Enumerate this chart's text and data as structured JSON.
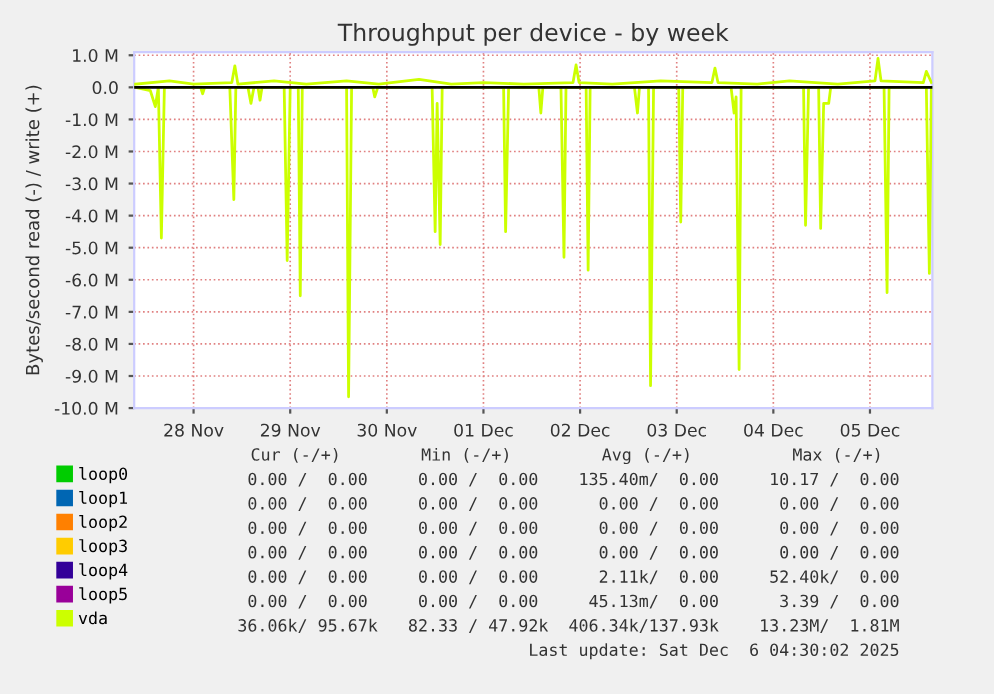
{
  "chart_data": {
    "type": "line",
    "title": "Throughput per device - by week",
    "ylabel": "Bytes/second read (-) / write (+)",
    "xlim": [
      "2025-11-27T21:15",
      "2025-12-06T03:30"
    ],
    "xticks": [
      {
        "value": "2025-11-28T12:00",
        "label": "28 Nov"
      },
      {
        "value": "2025-11-29T12:00",
        "label": "29 Nov"
      },
      {
        "value": "2025-11-30T12:00",
        "label": "30 Nov"
      },
      {
        "value": "2025-12-01T12:00",
        "label": "01 Dec"
      },
      {
        "value": "2025-12-02T12:00",
        "label": "02 Dec"
      },
      {
        "value": "2025-12-03T12:00",
        "label": "03 Dec"
      },
      {
        "value": "2025-12-04T12:00",
        "label": "04 Dec"
      },
      {
        "value": "2025-12-05T12:00",
        "label": "05 Dec"
      }
    ],
    "ylim": [
      -10,
      1.1
    ],
    "yticks": [
      {
        "value": 1,
        "label": "1.0 M"
      },
      {
        "value": 0,
        "label": "0.0"
      },
      {
        "value": -1,
        "label": "-1.0 M"
      },
      {
        "value": -2,
        "label": "-2.0 M"
      },
      {
        "value": -3,
        "label": "-3.0 M"
      },
      {
        "value": -4,
        "label": "-4.0 M"
      },
      {
        "value": -5,
        "label": "-5.0 M"
      },
      {
        "value": -6,
        "label": "-6.0 M"
      },
      {
        "value": -7,
        "label": "-7.0 M"
      },
      {
        "value": -8,
        "label": "-8.0 M"
      },
      {
        "value": -9,
        "label": "-9.0 M"
      },
      {
        "value": -10,
        "label": "-10.0 M"
      }
    ],
    "grid": true,
    "legend": "bottom",
    "marker": "none",
    "line_style": "solid",
    "ref_lines": [
      {
        "axis": "y",
        "value": 0,
        "color": "#000000"
      }
    ],
    "series": [
      {
        "name": "loop0",
        "color": "#00cc00"
      },
      {
        "name": "loop1",
        "color": "#0066b3"
      },
      {
        "name": "loop2",
        "color": "#ff8000"
      },
      {
        "name": "loop3",
        "color": "#ffcc00"
      },
      {
        "name": "loop4",
        "color": "#330099"
      },
      {
        "name": "loop5",
        "color": "#990099"
      },
      {
        "name": "vda",
        "color": "#ccff00",
        "x": [
          "2025-11-27T21:30",
          "2025-11-28T06:00",
          "2025-11-28T12:00",
          "2025-11-28T21:30",
          "2025-11-28T22:15",
          "2025-11-28T23:00",
          "2025-11-29T08:00",
          "2025-11-29T16:00",
          "2025-11-30T02:00",
          "2025-11-30T10:00",
          "2025-11-30T20:00",
          "2025-12-01T04:00",
          "2025-12-01T12:00",
          "2025-12-01T22:00",
          "2025-12-02T10:15",
          "2025-12-02T11:00",
          "2025-12-02T11:45",
          "2025-12-02T20:00",
          "2025-12-03T08:00",
          "2025-12-03T20:45",
          "2025-12-03T21:30",
          "2025-12-03T22:15",
          "2025-12-04T08:00",
          "2025-12-04T16:00",
          "2025-12-05T04:00",
          "2025-12-05T13:15",
          "2025-12-05T14:00",
          "2025-12-05T14:45",
          "2025-12-06T01:15",
          "2025-12-06T02:00",
          "2025-12-06T03:15"
        ],
        "values": [
          0.1,
          0.2,
          0.1,
          0.15,
          0.67,
          0.1,
          0.2,
          0.1,
          0.2,
          0.1,
          0.25,
          0.1,
          0.15,
          0.1,
          0.15,
          0.7,
          0.15,
          0.1,
          0.2,
          0.15,
          0.6,
          0.15,
          0.1,
          0.2,
          0.1,
          0.2,
          0.9,
          0.2,
          0.15,
          0.5,
          0.15
        ]
      },
      {
        "color": "#ccff00",
        "x": [
          "2025-11-27T21:30",
          "2025-11-28T01:15",
          "2025-11-28T02:30",
          "2025-11-28T03:15",
          "2025-11-28T04:00",
          "2025-11-28T04:45",
          "2025-11-28T13:45",
          "2025-11-28T14:15",
          "2025-11-28T14:45",
          "2025-11-28T21:00",
          "2025-11-28T22:00",
          "2025-11-28T22:30",
          "2025-11-29T01:30",
          "2025-11-29T02:15",
          "2025-11-29T03:00",
          "2025-11-29T04:00",
          "2025-11-29T04:30",
          "2025-11-29T05:00",
          "2025-11-29T10:30",
          "2025-11-29T11:15",
          "2025-11-29T12:00",
          "2025-11-29T14:00",
          "2025-11-29T14:30",
          "2025-11-29T15:00",
          "2025-11-30T02:00",
          "2025-11-30T02:30",
          "2025-11-30T03:15",
          "2025-11-30T08:30",
          "2025-11-30T09:00",
          "2025-11-30T09:45",
          "2025-11-30T23:15",
          "2025-12-01T00:00",
          "2025-12-01T00:30",
          "2025-12-01T01:15",
          "2025-12-01T01:45",
          "2025-12-01T17:00",
          "2025-12-01T17:30",
          "2025-12-01T18:15",
          "2025-12-02T01:45",
          "2025-12-02T02:15",
          "2025-12-02T02:45",
          "2025-12-02T07:15",
          "2025-12-02T08:00",
          "2025-12-02T08:30",
          "2025-12-02T13:30",
          "2025-12-02T14:00",
          "2025-12-02T14:30",
          "2025-12-03T01:30",
          "2025-12-03T02:15",
          "2025-12-03T02:45",
          "2025-12-03T05:00",
          "2025-12-03T05:30",
          "2025-12-03T06:15",
          "2025-12-03T12:30",
          "2025-12-03T13:00",
          "2025-12-03T13:30",
          "2025-12-04T01:30",
          "2025-12-04T02:15",
          "2025-12-04T02:45",
          "2025-12-04T03:30",
          "2025-12-04T04:00",
          "2025-12-04T19:30",
          "2025-12-04T20:00",
          "2025-12-04T20:45",
          "2025-12-04T23:15",
          "2025-12-04T23:45",
          "2025-12-05T00:30",
          "2025-12-05T01:45",
          "2025-12-05T02:15",
          "2025-12-05T15:30",
          "2025-12-05T16:15",
          "2025-12-05T16:45",
          "2025-12-06T02:00",
          "2025-12-06T02:45",
          "2025-12-06T03:15"
        ],
        "values": [
          0,
          -0.1,
          -0.6,
          0,
          -4.7,
          0,
          0,
          -0.2,
          0,
          0,
          -3.5,
          0,
          0,
          -0.5,
          0,
          0,
          -0.4,
          0,
          0,
          -5.4,
          0,
          0,
          -6.5,
          0,
          0,
          -9.65,
          0,
          0,
          -0.3,
          0,
          0,
          -4.5,
          -0.5,
          -4.9,
          0,
          0,
          -4.5,
          0,
          0,
          -0.8,
          0,
          0,
          -5.3,
          0,
          0,
          -5.7,
          0,
          0,
          -0.8,
          0,
          0,
          -9.3,
          0,
          0,
          -4.2,
          0,
          0,
          -0.8,
          -0.3,
          -8.8,
          0,
          0,
          -4.3,
          0,
          0,
          -4.4,
          -0.5,
          -0.5,
          0,
          0,
          -6.4,
          0,
          0,
          -5.8,
          0
        ]
      }
    ],
    "annotations": [
      "Cur (-/+)        Min (-/+)         Avg (-/+)          Max (-/+)",
      "0.00 /  0.00     0.00 /  0.00    135.40m/  0.00     10.17 /  0.00",
      "0.00 /  0.00     0.00 /  0.00      0.00 /  0.00      0.00 /  0.00",
      "0.00 /  0.00     0.00 /  0.00      0.00 /  0.00      0.00 /  0.00",
      "0.00 /  0.00     0.00 /  0.00      0.00 /  0.00      0.00 /  0.00",
      "0.00 /  0.00     0.00 /  0.00      2.11k/  0.00     52.40k/  0.00",
      "0.00 /  0.00     0.00 /  0.00     45.13m/  0.00      3.39 /  0.00",
      "36.06k/ 95.67k   82.33 / 47.92k  406.34k/137.93k    13.23M/  1.81M",
      "Last update: Sat Dec  6 04:30:02 2025"
    ]
  }
}
